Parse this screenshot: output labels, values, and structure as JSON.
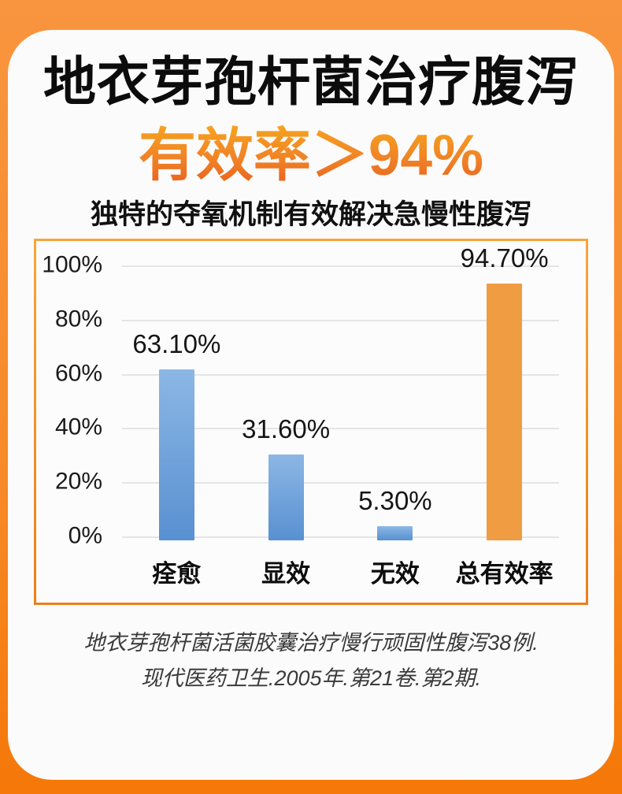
{
  "header": {
    "title": "地衣芽孢杆菌治疗腹泻",
    "headline": "有效率＞94%",
    "subtitle": "独特的夺氧机制有效解决急慢性腹泻"
  },
  "chart_data": {
    "type": "bar",
    "categories": [
      "痊愈",
      "显效",
      "无效",
      "总有效率"
    ],
    "values": [
      63.1,
      31.6,
      5.3,
      94.7
    ],
    "value_labels": [
      "63.10%",
      "31.60%",
      "5.30%",
      "94.70%"
    ],
    "bar_styles": [
      "blue",
      "blue",
      "blue",
      "orange"
    ],
    "y_axis": {
      "ticks": [
        "100%",
        "80%",
        "60%",
        "40%",
        "20%",
        "0%"
      ],
      "min": 0,
      "max": 100
    },
    "grid": true,
    "legend": "none",
    "title": "",
    "xlabel": "",
    "ylabel": ""
  },
  "citation": {
    "line1": "地衣芽孢杆菌活菌胶囊治疗慢行顽固性腹泻38例.",
    "line2": "现代医药卫生.2005年.第21卷.第2期."
  },
  "colors": {
    "background_top": "#F9953F",
    "background_bottom": "#F57808",
    "card": "#FBFBFB",
    "bar_blue_top": "#8CB7E5",
    "bar_blue_bottom": "#5890D1",
    "bar_orange": "#F09C42",
    "headline_gradient_top": "#F7A21F",
    "headline_gradient_bottom": "#E95E1C",
    "chart_border": "#F29232",
    "gridline": "#E4E4E4",
    "title_text": "#0C0C0C",
    "citation_text": "#3A3A3A"
  }
}
